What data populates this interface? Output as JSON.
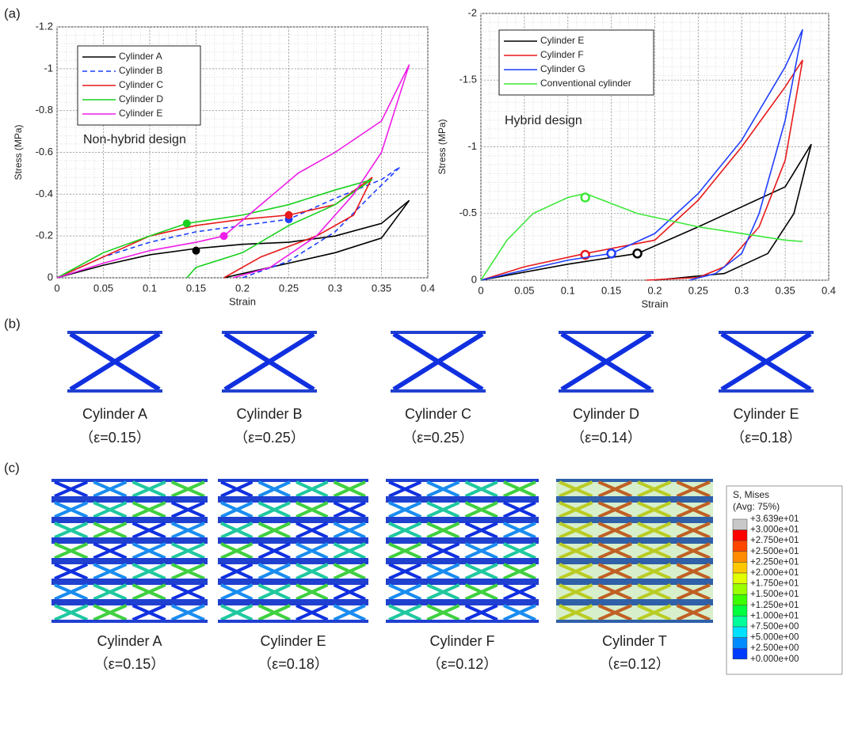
{
  "chart_data": [
    {
      "type": "line",
      "panel": "(a)",
      "annotation": "Non-hybrid design",
      "x_label": "Strain",
      "y_label": "Stress (MPa)",
      "xlim": [
        0,
        0.4
      ],
      "xticks": [
        0,
        0.05,
        0.1,
        0.15,
        0.2,
        0.25,
        0.3,
        0.35,
        0.4
      ],
      "ylim": [
        0,
        -1.2
      ],
      "yticks": [
        0,
        -0.2,
        -0.4,
        -0.6,
        -0.8,
        -1,
        -1.2
      ],
      "grid": true,
      "legend": "upper left",
      "markers": "filled",
      "series": [
        {
          "name": "Cylinder A",
          "color": "#000000",
          "style": "solid",
          "x": [
            0,
            0.05,
            0.1,
            0.15,
            0.2,
            0.25,
            0.3,
            0.35,
            0.38,
            0.35,
            0.3,
            0.25,
            0.2,
            0.18
          ],
          "values": [
            0,
            -0.06,
            -0.11,
            -0.14,
            -0.16,
            -0.17,
            -0.2,
            -0.26,
            -0.37,
            -0.19,
            -0.12,
            -0.07,
            -0.02,
            0
          ],
          "marker_x": 0.15,
          "marker_y": -0.13
        },
        {
          "name": "Cylinder B",
          "color": "#1f3fff",
          "style": "dashed",
          "x": [
            0,
            0.05,
            0.1,
            0.15,
            0.2,
            0.25,
            0.3,
            0.35,
            0.37,
            0.34,
            0.3,
            0.25,
            0.2
          ],
          "values": [
            0,
            -0.1,
            -0.17,
            -0.22,
            -0.25,
            -0.28,
            -0.38,
            -0.47,
            -0.53,
            -0.4,
            -0.22,
            -0.08,
            0
          ],
          "marker_x": 0.25,
          "marker_y": -0.28
        },
        {
          "name": "Cylinder C",
          "color": "#e8191b",
          "style": "solid",
          "x": [
            0,
            0.05,
            0.1,
            0.15,
            0.2,
            0.25,
            0.3,
            0.34,
            0.32,
            0.28,
            0.22,
            0.18
          ],
          "values": [
            0,
            -0.1,
            -0.2,
            -0.25,
            -0.28,
            -0.3,
            -0.35,
            -0.48,
            -0.3,
            -0.2,
            -0.1,
            0
          ],
          "marker_x": 0.25,
          "marker_y": -0.3
        },
        {
          "name": "Cylinder D",
          "color": "#19d11f",
          "style": "solid",
          "x": [
            0,
            0.05,
            0.1,
            0.14,
            0.2,
            0.25,
            0.3,
            0.34,
            0.3,
            0.25,
            0.2,
            0.15,
            0.14
          ],
          "values": [
            0,
            -0.12,
            -0.2,
            -0.26,
            -0.3,
            -0.35,
            -0.42,
            -0.47,
            -0.35,
            -0.25,
            -0.12,
            -0.05,
            0
          ],
          "marker_x": 0.14,
          "marker_y": -0.26
        },
        {
          "name": "Cylinder E",
          "color": "#ee1ee8",
          "style": "solid",
          "x": [
            0,
            0.05,
            0.1,
            0.15,
            0.18,
            0.22,
            0.26,
            0.3,
            0.35,
            0.38,
            0.35,
            0.32,
            0.28,
            0.23,
            0.19
          ],
          "values": [
            0,
            -0.07,
            -0.13,
            -0.17,
            -0.2,
            -0.35,
            -0.5,
            -0.6,
            -0.75,
            -1.02,
            -0.6,
            -0.4,
            -0.2,
            -0.05,
            0
          ],
          "marker_x": 0.18,
          "marker_y": -0.2
        }
      ]
    },
    {
      "type": "line",
      "annotation": "Hybrid design",
      "x_label": "Strain",
      "y_label": "Stress (MPa)",
      "xlim": [
        0,
        0.4
      ],
      "xticks": [
        0,
        0.05,
        0.1,
        0.15,
        0.2,
        0.25,
        0.3,
        0.35,
        0.4
      ],
      "ylim": [
        0,
        -2
      ],
      "yticks": [
        0,
        -0.5,
        -1,
        -1.5,
        -2
      ],
      "grid": true,
      "legend": "upper left",
      "markers": "open",
      "series": [
        {
          "name": "Cylinder E",
          "color": "#000000",
          "style": "solid",
          "x": [
            0,
            0.1,
            0.18,
            0.25,
            0.3,
            0.35,
            0.38,
            0.36,
            0.33,
            0.28,
            0.2
          ],
          "values": [
            0,
            -0.12,
            -0.2,
            -0.4,
            -0.55,
            -0.7,
            -1.02,
            -0.5,
            -0.2,
            -0.05,
            0
          ],
          "marker_x": 0.18,
          "marker_y": -0.2
        },
        {
          "name": "Cylinder F",
          "color": "#e8191b",
          "style": "solid",
          "x": [
            0,
            0.05,
            0.12,
            0.2,
            0.25,
            0.3,
            0.35,
            0.37,
            0.35,
            0.32,
            0.28,
            0.25,
            0.19
          ],
          "values": [
            0,
            -0.1,
            -0.2,
            -0.3,
            -0.6,
            -1,
            -1.45,
            -1.65,
            -0.9,
            -0.4,
            -0.1,
            -0.02,
            0
          ],
          "marker_x": 0.12,
          "marker_y": -0.19
        },
        {
          "name": "Cylinder G",
          "color": "#1f3fff",
          "style": "solid",
          "x": [
            0,
            0.1,
            0.15,
            0.2,
            0.25,
            0.3,
            0.35,
            0.37,
            0.35,
            0.32,
            0.3,
            0.27,
            0.24
          ],
          "values": [
            0,
            -0.15,
            -0.2,
            -0.35,
            -0.65,
            -1.05,
            -1.6,
            -1.88,
            -1.2,
            -0.5,
            -0.2,
            -0.05,
            0
          ],
          "marker_x": 0.15,
          "marker_y": -0.2
        },
        {
          "name": "Conventional cylinder",
          "color": "#3ee83a",
          "style": "solid",
          "x": [
            0,
            0.03,
            0.06,
            0.1,
            0.12,
            0.14,
            0.18,
            0.25,
            0.3,
            0.35,
            0.37
          ],
          "values": [
            0,
            -0.3,
            -0.5,
            -0.62,
            -0.65,
            -0.6,
            -0.5,
            -0.4,
            -0.35,
            -0.3,
            -0.29
          ],
          "marker_x": 0.12,
          "marker_y": -0.62
        }
      ]
    }
  ],
  "panel_b": {
    "label": "(b)",
    "items": [
      {
        "name": "Cylinder A",
        "strain": "（ε=0.15）"
      },
      {
        "name": "Cylinder B",
        "strain": "（ε=0.25）"
      },
      {
        "name": "Cylinder C",
        "strain": "（ε=0.25）"
      },
      {
        "name": "Cylinder D",
        "strain": "（ε=0.14）"
      },
      {
        "name": "Cylinder E",
        "strain": "（ε=0.18）"
      }
    ]
  },
  "panel_c": {
    "label": "(c)",
    "items": [
      {
        "name": "Cylinder A",
        "strain": "（ε=0.15）"
      },
      {
        "name": "Cylinder E",
        "strain": "（ε=0.18）"
      },
      {
        "name": "Cylinder F",
        "strain": "（ε=0.12）"
      },
      {
        "name": "Cylinder T",
        "strain": "（ε=0.12）"
      }
    ],
    "contour_legend": {
      "title": "S, Mises",
      "subtitle": "(Avg: 75%)",
      "labels": [
        "+3.639e+01",
        "+3.000e+01",
        "+2.750e+01",
        "+2.500e+01",
        "+2.250e+01",
        "+2.000e+01",
        "+1.750e+01",
        "+1.500e+01",
        "+1.250e+01",
        "+1.000e+01",
        "+7.500e+00",
        "+5.000e+00",
        "+2.500e+00",
        "+0.000e+00"
      ],
      "colors": [
        "#c8c8c8",
        "#ff0000",
        "#ff4600",
        "#ff8c00",
        "#ffc800",
        "#e1ff00",
        "#9bff00",
        "#3cff00",
        "#00ff3c",
        "#00ff9b",
        "#00e1ff",
        "#008cff",
        "#003cff"
      ]
    }
  }
}
